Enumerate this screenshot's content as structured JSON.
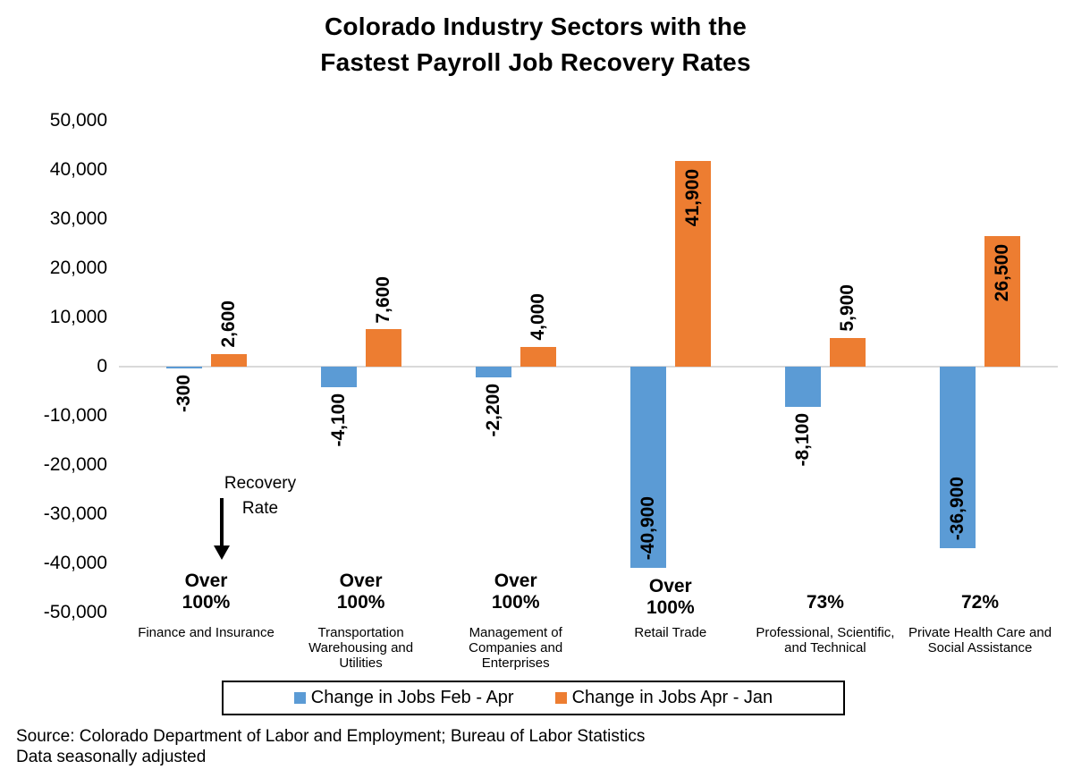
{
  "chart_data": {
    "type": "bar",
    "title": "Colorado Industry Sectors with the\nFastest Payroll Job Recovery Rates",
    "categories": [
      "Finance and Insurance",
      "Transportation\nWarehousing and\nUtilities",
      "Management of\nCompanies and\nEnterprises",
      "Retail Trade",
      "Professional, Scientific,\nand Technical",
      "Private Health Care and\nSocial Assistance"
    ],
    "recovery_rates": [
      "Over\n100%",
      "Over\n100%",
      "Over\n100%",
      "Over\n100%",
      "73%",
      "72%"
    ],
    "series": [
      {
        "name": "Change in Jobs Feb - Apr",
        "color": "#5B9BD5",
        "values": [
          -300,
          -4100,
          -2200,
          -40900,
          -8100,
          -36900
        ],
        "labels": [
          "-300",
          "-4,100",
          "-2,200",
          "-40,900",
          "-8,100",
          "-36,900"
        ]
      },
      {
        "name": "Change in Jobs Apr - Jan",
        "color": "#ED7D31",
        "values": [
          2600,
          7600,
          4000,
          41900,
          5900,
          26500
        ],
        "labels": [
          "2,600",
          "7,600",
          "4,000",
          "41,900",
          "5,900",
          "26,500"
        ]
      }
    ],
    "ylim": [
      -50000,
      50000
    ],
    "ytick_interval": 10000,
    "ytick_labels": [
      "50,000",
      "40,000",
      "30,000",
      "20,000",
      "10,000",
      "0",
      "-10,000",
      "-20,000",
      "-30,000",
      "-40,000",
      "-50,000"
    ],
    "ytick_values": [
      50000,
      40000,
      30000,
      20000,
      10000,
      0,
      -10000,
      -20000,
      -30000,
      -40000,
      -50000
    ],
    "grid": "zero-line-only",
    "legend_position": "bottom",
    "annotation": {
      "text": "Recovery\nRate",
      "arrow": "down"
    },
    "zero_line_color": "#D9D9D9"
  },
  "source": {
    "line1": "Source: Colorado Department of Labor and Employment; Bureau of Labor Statistics",
    "line2": "Data seasonally adjusted"
  }
}
